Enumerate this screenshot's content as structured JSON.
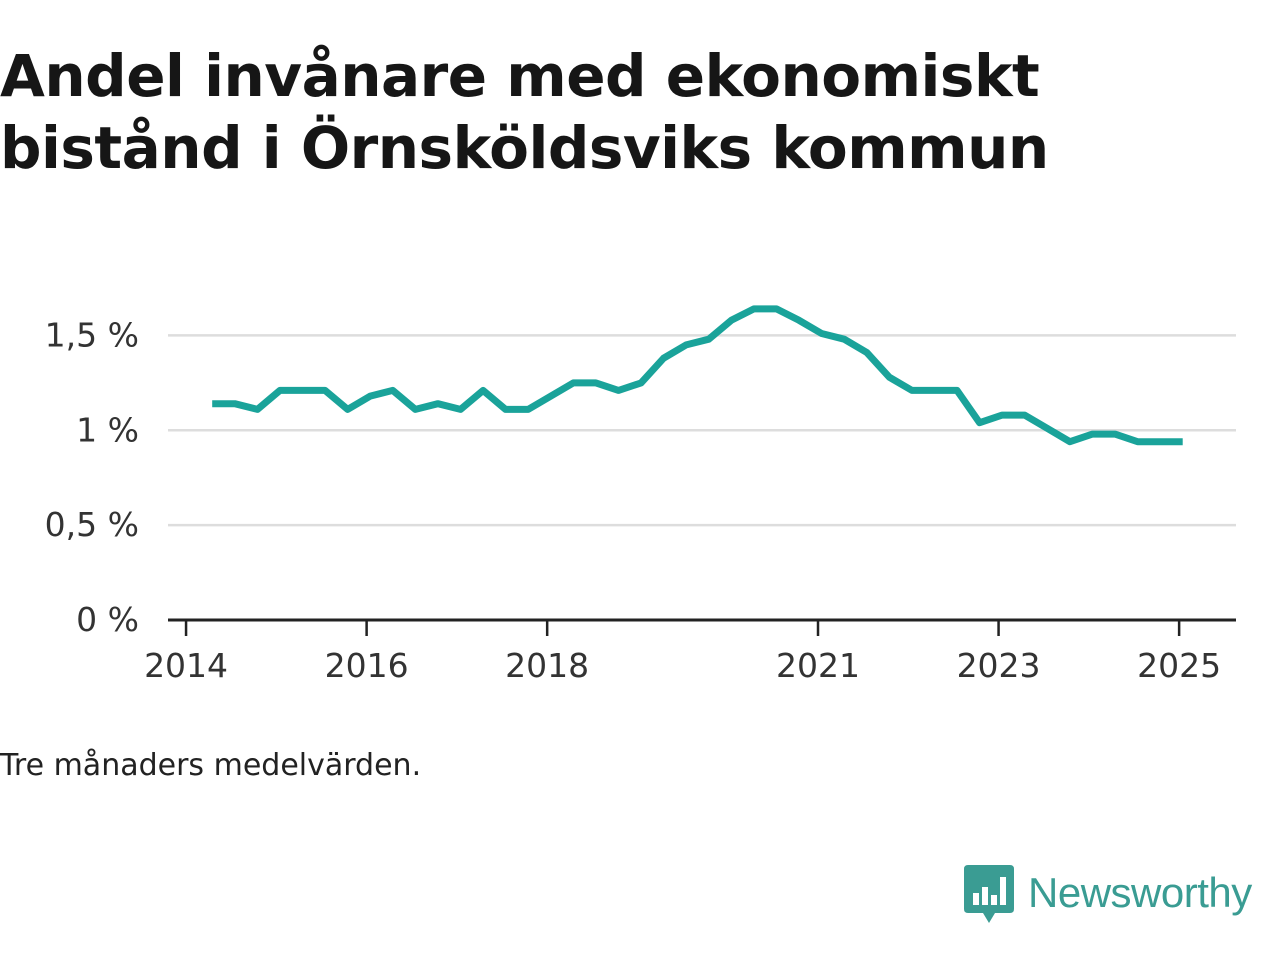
{
  "title_lines": [
    "Andel invånare med ekonomiskt",
    "bistånd i Örnsköldsviks kommun"
  ],
  "note": "Tre månaders medelvärden.",
  "brand": {
    "name": "Newsworthy",
    "icon": "newsworthy-logo-icon",
    "color": "#3a9c93"
  },
  "colors": {
    "line": "#1aa39a",
    "grid": "#dddddd",
    "axis": "#222222",
    "text": "#333333"
  },
  "chart_data": {
    "type": "line",
    "title": "Andel invånare med ekonomiskt bistånd i Örnsköldsviks kommun",
    "xlabel": "",
    "ylabel": "",
    "y_ticks": [
      {
        "value": 0,
        "label": "0 %"
      },
      {
        "value": 0.5,
        "label": "0,5 %"
      },
      {
        "value": 1.0,
        "label": "1 %"
      },
      {
        "value": 1.5,
        "label": "1,5 %"
      }
    ],
    "x_ticks": [
      {
        "value": 2014.0,
        "label": "2014"
      },
      {
        "value": 2016.0,
        "label": "2016"
      },
      {
        "value": 2018.0,
        "label": "2018"
      },
      {
        "value": 2021.0,
        "label": "2021"
      },
      {
        "value": 2023.0,
        "label": "2023"
      },
      {
        "value": 2025.0,
        "label": "2025"
      }
    ],
    "xlim": [
      2013.8,
      2025.63
    ],
    "ylim": [
      0,
      1.75
    ],
    "grid": "horizontal",
    "series": [
      {
        "x": [
          2014.29,
          2014.54,
          2014.79,
          2015.04,
          2015.29,
          2015.54,
          2015.79,
          2016.04,
          2016.29,
          2016.54,
          2016.79,
          2017.04,
          2017.29,
          2017.54,
          2017.79,
          2018.04,
          2018.29,
          2018.54,
          2018.79,
          2019.04,
          2019.29,
          2019.54,
          2019.79,
          2020.04,
          2020.29,
          2020.54,
          2020.79,
          2021.04,
          2021.29,
          2021.54,
          2021.79,
          2022.04,
          2022.29,
          2022.54,
          2022.79,
          2023.04,
          2023.29,
          2023.54,
          2023.79,
          2024.04,
          2024.29,
          2024.54,
          2024.79,
          2025.04
        ],
        "values": [
          1.14,
          1.14,
          1.11,
          1.21,
          1.21,
          1.21,
          1.11,
          1.18,
          1.21,
          1.11,
          1.14,
          1.11,
          1.21,
          1.11,
          1.11,
          1.18,
          1.25,
          1.25,
          1.21,
          1.25,
          1.38,
          1.45,
          1.48,
          1.58,
          1.64,
          1.64,
          1.58,
          1.51,
          1.48,
          1.41,
          1.28,
          1.21,
          1.21,
          1.21,
          1.04,
          1.08,
          1.08,
          1.01,
          0.94,
          0.98,
          0.98,
          0.94,
          0.94,
          0.94
        ]
      }
    ]
  }
}
